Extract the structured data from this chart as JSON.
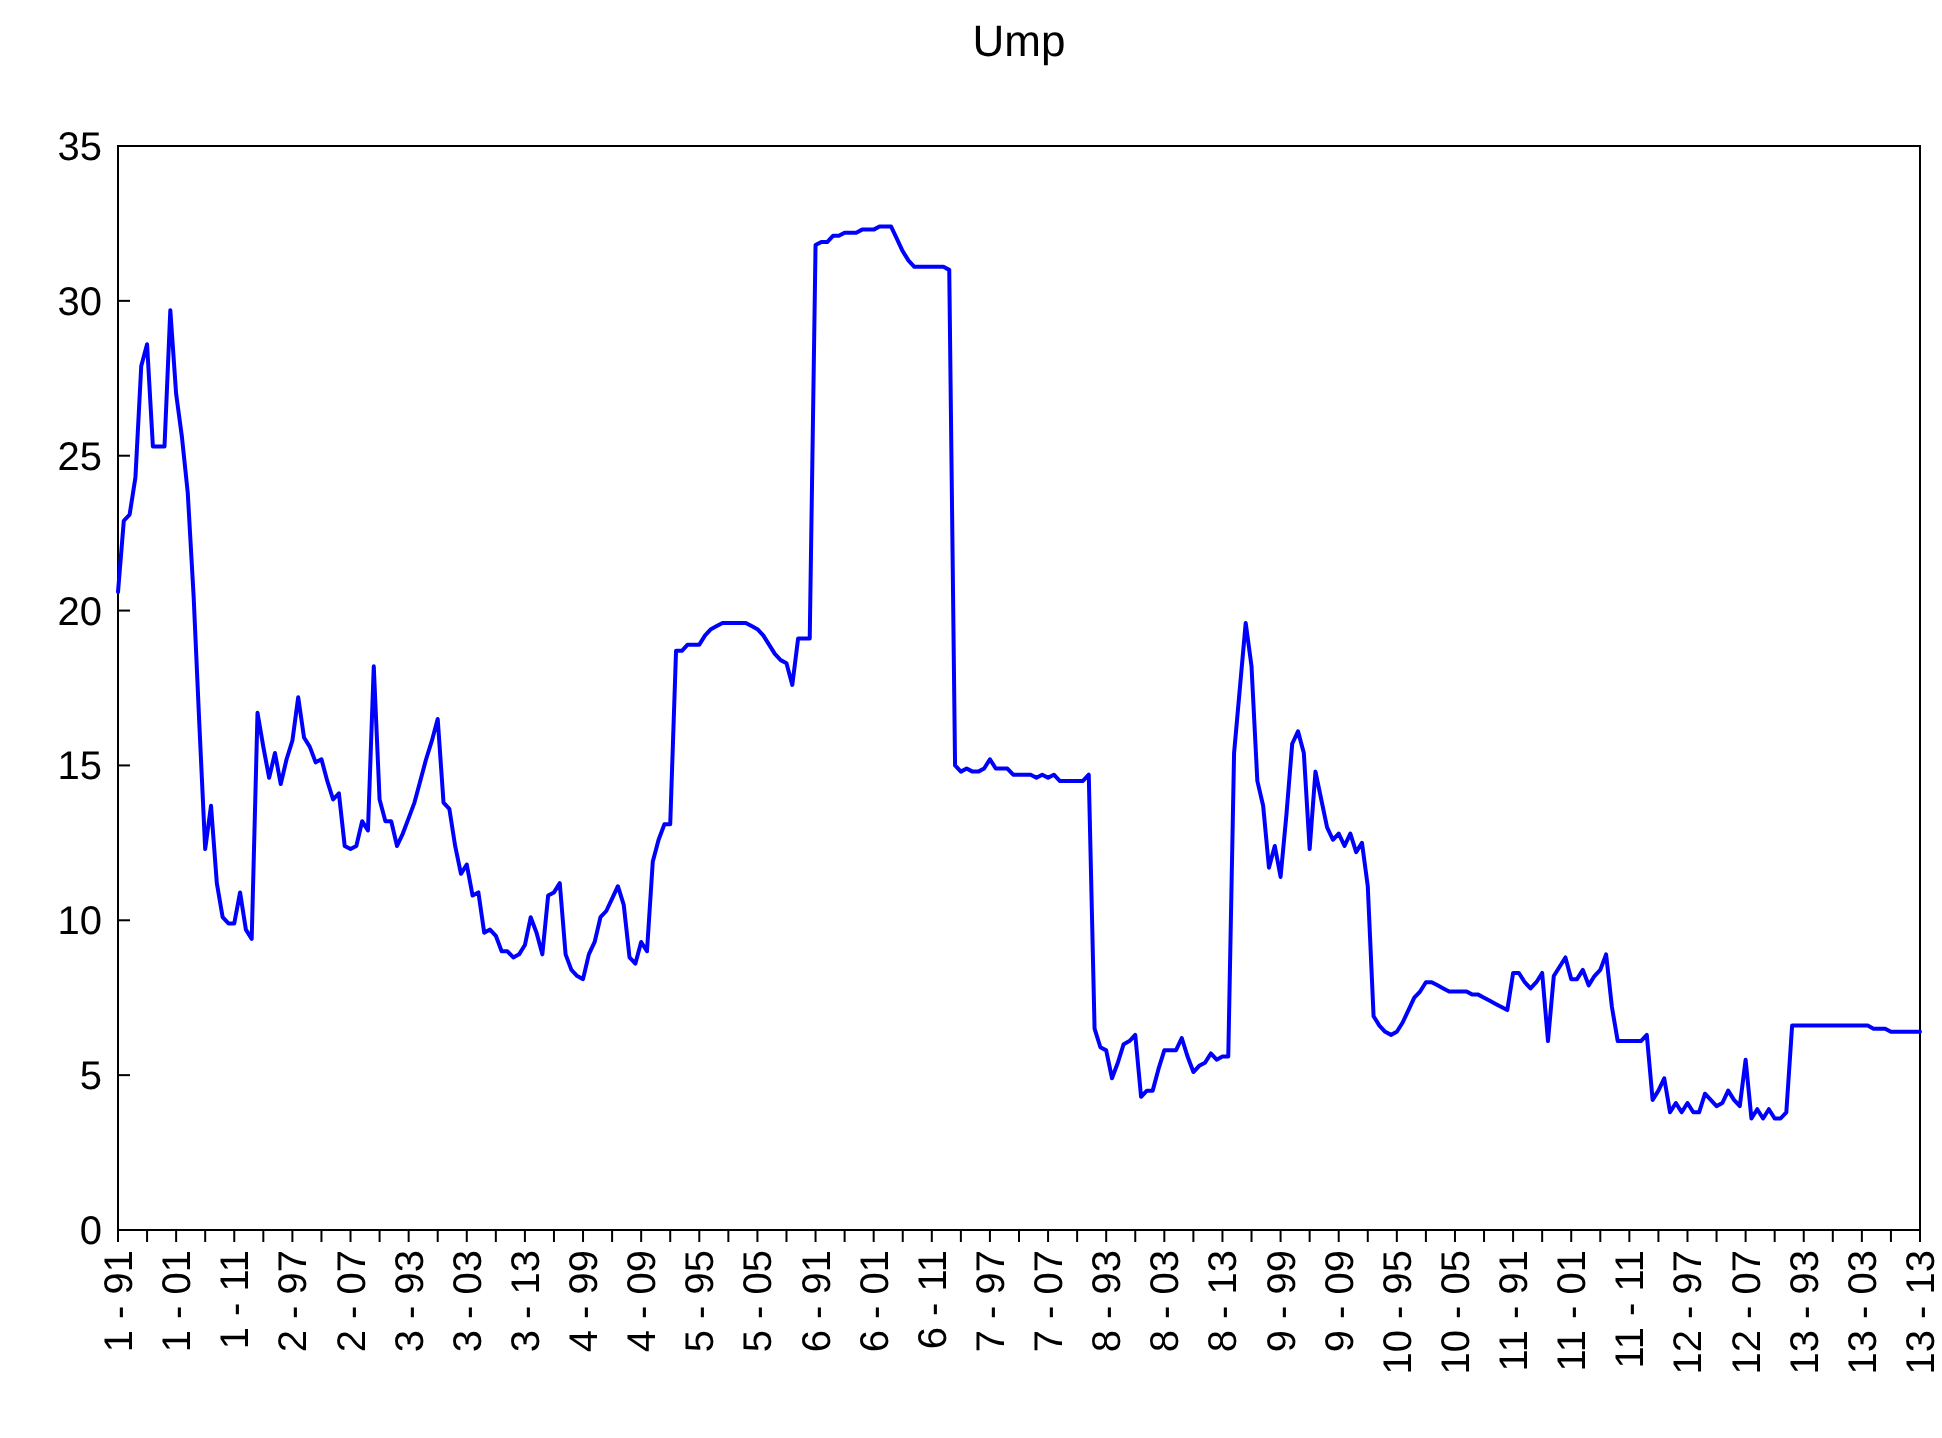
{
  "chart_data": {
    "type": "line",
    "title": "Ump",
    "categories": [
      "1 - 91",
      null,
      null,
      null,
      null,
      null,
      null,
      null,
      null,
      null,
      "1 - 01",
      null,
      null,
      null,
      null,
      null,
      null,
      null,
      null,
      null,
      "1 - 11",
      null,
      null,
      null,
      null,
      null,
      null,
      null,
      null,
      null,
      "2 - 97",
      null,
      null,
      null,
      null,
      null,
      null,
      null,
      null,
      null,
      "2 - 07",
      null,
      null,
      null,
      null,
      null,
      null,
      null,
      null,
      null,
      "3 - 93",
      null,
      null,
      null,
      null,
      null,
      null,
      null,
      null,
      null,
      "3 - 03",
      null,
      null,
      null,
      null,
      null,
      null,
      null,
      null,
      null,
      "3 - 13",
      null,
      null,
      null,
      null,
      null,
      null,
      null,
      null,
      null,
      "4 - 99",
      null,
      null,
      null,
      null,
      null,
      null,
      null,
      null,
      null,
      "4 - 09",
      null,
      null,
      null,
      null,
      null,
      null,
      null,
      null,
      null,
      "5 - 95",
      null,
      null,
      null,
      null,
      null,
      null,
      null,
      null,
      null,
      "5 - 05",
      null,
      null,
      null,
      null,
      null,
      null,
      null,
      null,
      null,
      "6 - 91",
      null,
      null,
      null,
      null,
      null,
      null,
      null,
      null,
      null,
      "6 - 01",
      null,
      null,
      null,
      null,
      null,
      null,
      null,
      null,
      null,
      "6 - 11",
      null,
      null,
      null,
      null,
      null,
      null,
      null,
      null,
      null,
      "7 - 97",
      null,
      null,
      null,
      null,
      null,
      null,
      null,
      null,
      null,
      "7 - 07",
      null,
      null,
      null,
      null,
      null,
      null,
      null,
      null,
      null,
      "8 - 93",
      null,
      null,
      null,
      null,
      null,
      null,
      null,
      null,
      null,
      "8 - 03",
      null,
      null,
      null,
      null,
      null,
      null,
      null,
      null,
      null,
      "8 - 13",
      null,
      null,
      null,
      null,
      null,
      null,
      null,
      null,
      null,
      "9 - 99",
      null,
      null,
      null,
      null,
      null,
      null,
      null,
      null,
      null,
      "9 - 09",
      null,
      null,
      null,
      null,
      null,
      null,
      null,
      null,
      null,
      "10 - 95",
      null,
      null,
      null,
      null,
      null,
      null,
      null,
      null,
      null,
      "10 - 05",
      null,
      null,
      null,
      null,
      null,
      null,
      null,
      null,
      null,
      "11 - 91",
      null,
      null,
      null,
      null,
      null,
      null,
      null,
      null,
      null,
      "11 - 01",
      null,
      null,
      null,
      null,
      null,
      null,
      null,
      null,
      null,
      "11 - 11",
      null,
      null,
      null,
      null,
      null,
      null,
      null,
      null,
      null,
      "12 - 97",
      null,
      null,
      null,
      null,
      null,
      null,
      null,
      null,
      null,
      "12 - 07",
      null,
      null,
      null,
      null,
      null,
      null,
      null,
      null,
      null,
      "13 - 93",
      null,
      null,
      null,
      null,
      null,
      null,
      null,
      null,
      null,
      "13 - 03",
      null,
      null,
      null,
      null,
      null,
      null,
      null,
      null,
      null,
      "13 - 13"
    ],
    "series": [
      {
        "color": "#0000ff",
        "values": [
          20.6,
          22.9,
          23.1,
          24.3,
          27.9,
          28.6,
          25.3,
          25.3,
          25.3,
          29.7,
          27.0,
          25.6,
          23.8,
          20.5,
          16.3,
          12.3,
          13.7,
          11.2,
          10.1,
          9.9,
          9.9,
          10.9,
          9.7,
          9.4,
          16.7,
          15.6,
          14.6,
          15.4,
          14.4,
          15.2,
          15.8,
          17.2,
          15.9,
          15.6,
          15.1,
          15.2,
          14.5,
          13.9,
          14.1,
          12.4,
          12.3,
          12.4,
          13.2,
          12.9,
          18.2,
          13.9,
          13.2,
          13.2,
          12.4,
          12.8,
          13.3,
          13.8,
          14.5,
          15.2,
          15.8,
          16.5,
          13.8,
          13.6,
          12.4,
          11.5,
          11.8,
          10.8,
          10.9,
          9.6,
          9.7,
          9.5,
          9.0,
          9.0,
          8.8,
          8.9,
          9.2,
          10.1,
          9.6,
          8.9,
          10.8,
          10.9,
          11.2,
          8.9,
          8.4,
          8.2,
          8.1,
          8.9,
          9.3,
          10.1,
          10.3,
          10.7,
          11.1,
          10.5,
          8.8,
          8.6,
          9.3,
          9.0,
          11.9,
          12.6,
          13.1,
          13.1,
          18.7,
          18.7,
          18.9,
          18.9,
          18.9,
          19.2,
          19.4,
          19.5,
          19.6,
          19.6,
          19.6,
          19.6,
          19.6,
          19.5,
          19.4,
          19.2,
          18.9,
          18.6,
          18.4,
          18.3,
          17.6,
          19.1,
          19.1,
          19.1,
          31.8,
          31.9,
          31.9,
          32.1,
          32.1,
          32.2,
          32.2,
          32.2,
          32.3,
          32.3,
          32.3,
          32.4,
          32.4,
          32.4,
          32.0,
          31.6,
          31.3,
          31.1,
          31.1,
          31.1,
          31.1,
          31.1,
          31.1,
          31.0,
          15.0,
          14.8,
          14.9,
          14.8,
          14.8,
          14.9,
          15.2,
          14.9,
          14.9,
          14.9,
          14.7,
          14.7,
          14.7,
          14.7,
          14.6,
          14.7,
          14.6,
          14.7,
          14.5,
          14.5,
          14.5,
          14.5,
          14.5,
          14.7,
          6.5,
          5.9,
          5.8,
          4.9,
          5.4,
          6.0,
          6.1,
          6.3,
          4.3,
          4.5,
          4.5,
          5.2,
          5.8,
          5.8,
          5.8,
          6.2,
          5.6,
          5.1,
          5.3,
          5.4,
          5.7,
          5.5,
          5.6,
          5.6,
          15.4,
          17.5,
          19.6,
          18.2,
          14.5,
          13.7,
          11.7,
          12.4,
          11.4,
          13.4,
          15.7,
          16.1,
          15.4,
          12.3,
          14.8,
          13.9,
          13.0,
          12.6,
          12.8,
          12.4,
          12.8,
          12.2,
          12.5,
          11.1,
          6.9,
          6.6,
          6.4,
          6.3,
          6.4,
          6.7,
          7.1,
          7.5,
          7.7,
          8.0,
          8.0,
          7.9,
          7.8,
          7.7,
          7.7,
          7.7,
          7.7,
          7.6,
          7.6,
          7.5,
          7.4,
          7.3,
          7.2,
          7.1,
          8.3,
          8.3,
          8.0,
          7.8,
          8.0,
          8.3,
          6.1,
          8.2,
          8.5,
          8.8,
          8.1,
          8.1,
          8.4,
          7.9,
          8.2,
          8.4,
          8.9,
          7.2,
          6.1,
          6.1,
          6.1,
          6.1,
          6.1,
          6.3,
          4.2,
          4.5,
          4.9,
          3.8,
          4.1,
          3.8,
          4.1,
          3.8,
          3.8,
          4.4,
          4.2,
          4.0,
          4.1,
          4.5,
          4.2,
          4.0,
          5.5,
          3.6,
          3.9,
          3.6,
          3.9,
          3.6,
          3.6,
          3.8,
          6.6,
          6.6,
          6.6,
          6.6,
          6.6,
          6.6,
          6.6,
          6.6,
          6.6,
          6.6,
          6.6,
          6.6,
          6.6,
          6.6,
          6.5,
          6.5,
          6.5,
          6.4,
          6.4,
          6.4,
          6.4,
          6.4,
          6.4
        ]
      }
    ],
    "ylim": [
      0,
      35
    ],
    "yticks": [
      0,
      5,
      10,
      15,
      20,
      25,
      30,
      35
    ],
    "grid": false,
    "marker": "none",
    "line_style": "solid"
  }
}
